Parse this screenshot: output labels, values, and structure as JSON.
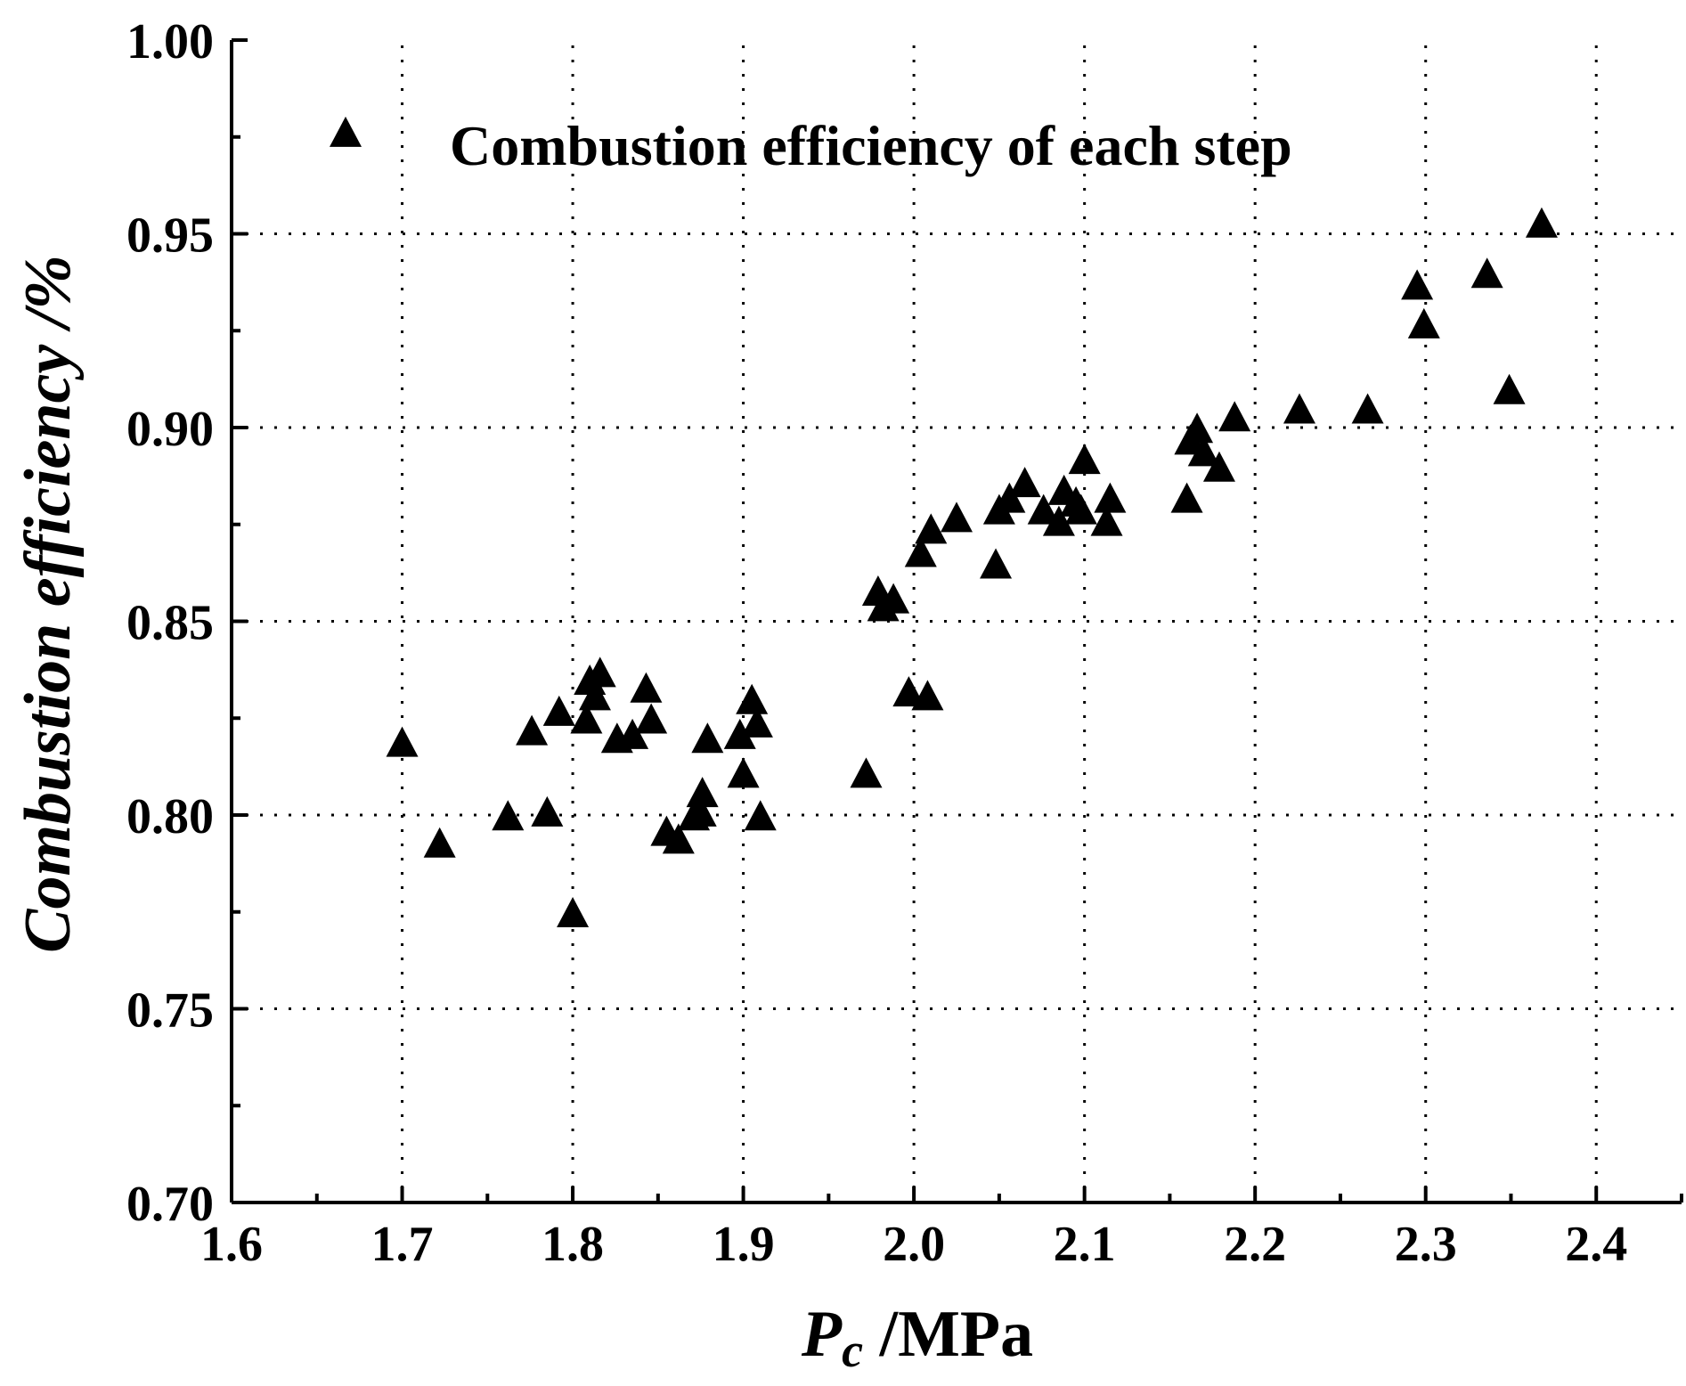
{
  "chart_data": {
    "type": "scatter",
    "title": "",
    "xlabel": {
      "symbol": "P",
      "subscript": "c",
      "unit": " /MPa"
    },
    "ylabel": "Combustion efficiency /%",
    "xlim": [
      1.6,
      2.45
    ],
    "ylim": [
      0.7,
      1.0
    ],
    "x_ticks": [
      1.6,
      1.7,
      1.8,
      1.9,
      2.0,
      2.1,
      2.2,
      2.3,
      2.4
    ],
    "y_ticks": [
      0.7,
      0.75,
      0.8,
      0.85,
      0.9,
      0.95,
      1.0
    ],
    "x_tick_labels": [
      "1.6",
      "1.7",
      "1.8",
      "1.9",
      "2.0",
      "2.1",
      "2.2",
      "2.3",
      "2.4"
    ],
    "y_tick_labels": [
      "0.70",
      "0.75",
      "0.80",
      "0.85",
      "0.90",
      "0.95",
      "1.00"
    ],
    "grid": true,
    "legend": {
      "position": "top-left",
      "entries": [
        "Combustion efficiency of each step"
      ]
    },
    "colors": {
      "marker": "#000000",
      "axis": "#000000",
      "grid": "#000000"
    },
    "series": [
      {
        "name": "Combustion efficiency of each step",
        "marker": "triangle",
        "points": [
          [
            1.7,
            0.818
          ],
          [
            1.722,
            0.792
          ],
          [
            1.762,
            0.799
          ],
          [
            1.776,
            0.821
          ],
          [
            1.785,
            0.8
          ],
          [
            1.792,
            0.826
          ],
          [
            1.8,
            0.774
          ],
          [
            1.808,
            0.824
          ],
          [
            1.81,
            0.834
          ],
          [
            1.813,
            0.83
          ],
          [
            1.816,
            0.836
          ],
          [
            1.826,
            0.819
          ],
          [
            1.835,
            0.82
          ],
          [
            1.843,
            0.832
          ],
          [
            1.846,
            0.824
          ],
          [
            1.855,
            0.795
          ],
          [
            1.862,
            0.793
          ],
          [
            1.871,
            0.799
          ],
          [
            1.875,
            0.8
          ],
          [
            1.876,
            0.805
          ],
          [
            1.879,
            0.819
          ],
          [
            1.898,
            0.82
          ],
          [
            1.9,
            0.81
          ],
          [
            1.905,
            0.829
          ],
          [
            1.908,
            0.823
          ],
          [
            1.91,
            0.799
          ],
          [
            1.972,
            0.81
          ],
          [
            1.979,
            0.857
          ],
          [
            1.982,
            0.853
          ],
          [
            1.988,
            0.855
          ],
          [
            1.997,
            0.831
          ],
          [
            2.004,
            0.867
          ],
          [
            2.008,
            0.83
          ],
          [
            2.01,
            0.873
          ],
          [
            2.025,
            0.876
          ],
          [
            2.048,
            0.864
          ],
          [
            2.05,
            0.878
          ],
          [
            2.056,
            0.881
          ],
          [
            2.065,
            0.885
          ],
          [
            2.076,
            0.878
          ],
          [
            2.085,
            0.875
          ],
          [
            2.088,
            0.883
          ],
          [
            2.095,
            0.88
          ],
          [
            2.098,
            0.878
          ],
          [
            2.1,
            0.891
          ],
          [
            2.113,
            0.875
          ],
          [
            2.115,
            0.881
          ],
          [
            2.16,
            0.881
          ],
          [
            2.162,
            0.896
          ],
          [
            2.166,
            0.899
          ],
          [
            2.17,
            0.893
          ],
          [
            2.179,
            0.889
          ],
          [
            2.188,
            0.902
          ],
          [
            2.226,
            0.904
          ],
          [
            2.266,
            0.904
          ],
          [
            2.295,
            0.936
          ],
          [
            2.299,
            0.926
          ],
          [
            2.336,
            0.939
          ],
          [
            2.349,
            0.909
          ],
          [
            2.368,
            0.952
          ]
        ]
      }
    ]
  }
}
